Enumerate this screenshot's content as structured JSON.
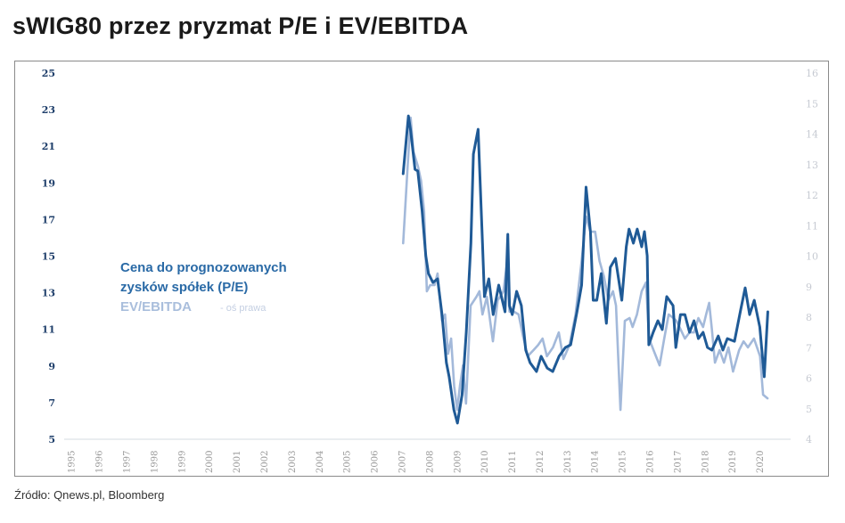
{
  "chart_data": {
    "type": "line",
    "title": "sWIG80 przez pryzmat P/E i EV/EBITDA",
    "source": "Źródło: Qnews.pl, Bloomberg",
    "xlabel": "",
    "ylabel_left": "",
    "ylabel_right": "",
    "xlim": [
      1994.75,
      2021.0
    ],
    "ylim_left": [
      5,
      25
    ],
    "ylim_right": [
      4,
      16
    ],
    "yticks_left": [
      "5",
      "7",
      "9",
      "11",
      "13",
      "15",
      "17",
      "19",
      "21",
      "23",
      "25"
    ],
    "yticks_right": [
      "4",
      "5",
      "6",
      "7",
      "8",
      "9",
      "10",
      "11",
      "12",
      "13",
      "14",
      "15",
      "16"
    ],
    "xticks": [
      "1995",
      "1996",
      "1997",
      "1998",
      "1999",
      "2000",
      "2001",
      "2002",
      "2003",
      "2004",
      "2005",
      "2006",
      "2007",
      "2008",
      "2009",
      "2010",
      "2011",
      "2012",
      "2013",
      "2014",
      "2015",
      "2016",
      "2017",
      "2018",
      "2019",
      "2020"
    ],
    "grid": false,
    "legend": {
      "placement": "center-left",
      "pe_line1": "Cena do prognozowanych",
      "pe_line2": "zysków spółek (P/E)",
      "ev_label": "EV/EBITDA",
      "ev_note": "- oś prawa"
    },
    "colors": {
      "pe": "#1f5a96",
      "ev": "#a3b9da"
    },
    "series": [
      {
        "name": "Cena do prognozowanych zysków spółek (P/E)",
        "axis": "left",
        "points": [
          [
            2007.06,
            19.5
          ],
          [
            2007.25,
            22.66
          ],
          [
            2007.33,
            21.85
          ],
          [
            2007.49,
            19.74
          ],
          [
            2007.59,
            19.65
          ],
          [
            2007.75,
            17.46
          ],
          [
            2007.88,
            15.02
          ],
          [
            2007.98,
            14.05
          ],
          [
            2008.14,
            13.56
          ],
          [
            2008.31,
            13.76
          ],
          [
            2008.47,
            11.81
          ],
          [
            2008.63,
            9.18
          ],
          [
            2008.73,
            8.41
          ],
          [
            2008.9,
            6.61
          ],
          [
            2009.03,
            5.88
          ],
          [
            2009.2,
            7.43
          ],
          [
            2009.35,
            10.84
          ],
          [
            2009.52,
            15.71
          ],
          [
            2009.61,
            20.57
          ],
          [
            2009.78,
            21.93
          ],
          [
            2009.94,
            15.71
          ],
          [
            2010.01,
            12.79
          ],
          [
            2010.17,
            13.76
          ],
          [
            2010.33,
            11.81
          ],
          [
            2010.53,
            13.42
          ],
          [
            2010.76,
            11.96
          ],
          [
            2010.86,
            16.19
          ],
          [
            2010.92,
            12.3
          ],
          [
            2011.02,
            11.81
          ],
          [
            2011.18,
            13.08
          ],
          [
            2011.35,
            12.3
          ],
          [
            2011.51,
            9.87
          ],
          [
            2011.67,
            9.18
          ],
          [
            2011.9,
            8.7
          ],
          [
            2012.07,
            9.53
          ],
          [
            2012.29,
            8.89
          ],
          [
            2012.49,
            8.7
          ],
          [
            2012.72,
            9.53
          ],
          [
            2012.95,
            10.01
          ],
          [
            2013.14,
            10.16
          ],
          [
            2013.37,
            11.96
          ],
          [
            2013.54,
            13.42
          ],
          [
            2013.7,
            18.77
          ],
          [
            2013.86,
            16.34
          ],
          [
            2013.96,
            12.59
          ],
          [
            2014.09,
            12.59
          ],
          [
            2014.25,
            14.05
          ],
          [
            2014.44,
            11.33
          ],
          [
            2014.58,
            14.39
          ],
          [
            2014.77,
            14.88
          ],
          [
            2015.0,
            12.59
          ],
          [
            2015.16,
            15.51
          ],
          [
            2015.26,
            16.48
          ],
          [
            2015.42,
            15.71
          ],
          [
            2015.56,
            16.48
          ],
          [
            2015.72,
            15.51
          ],
          [
            2015.82,
            16.34
          ],
          [
            2015.92,
            15.02
          ],
          [
            2015.98,
            10.16
          ],
          [
            2016.14,
            10.84
          ],
          [
            2016.31,
            11.47
          ],
          [
            2016.47,
            10.99
          ],
          [
            2016.63,
            12.79
          ],
          [
            2016.86,
            12.3
          ],
          [
            2016.96,
            10.01
          ],
          [
            2017.13,
            11.81
          ],
          [
            2017.29,
            11.81
          ],
          [
            2017.46,
            10.84
          ],
          [
            2017.62,
            11.47
          ],
          [
            2017.78,
            10.5
          ],
          [
            2017.95,
            10.84
          ],
          [
            2018.11,
            10.01
          ],
          [
            2018.27,
            9.87
          ],
          [
            2018.5,
            10.64
          ],
          [
            2018.67,
            9.87
          ],
          [
            2018.83,
            10.5
          ],
          [
            2019.09,
            10.35
          ],
          [
            2019.32,
            12.1
          ],
          [
            2019.48,
            13.27
          ],
          [
            2019.64,
            11.81
          ],
          [
            2019.81,
            12.59
          ],
          [
            2020.01,
            11.13
          ],
          [
            2020.17,
            8.41
          ],
          [
            2020.3,
            11.96
          ]
        ]
      },
      {
        "name": "EV/EBITDA",
        "axis": "right",
        "points": [
          [
            2007.06,
            10.42
          ],
          [
            2007.22,
            12.93
          ],
          [
            2007.33,
            14.54
          ],
          [
            2007.43,
            13.43
          ],
          [
            2007.6,
            12.93
          ],
          [
            2007.71,
            12.47
          ],
          [
            2007.82,
            11.47
          ],
          [
            2007.92,
            8.85
          ],
          [
            2008.04,
            9.05
          ],
          [
            2008.2,
            9.05
          ],
          [
            2008.31,
            9.43
          ],
          [
            2008.47,
            7.88
          ],
          [
            2008.58,
            8.09
          ],
          [
            2008.69,
            6.8
          ],
          [
            2008.8,
            7.3
          ],
          [
            2008.91,
            5.75
          ],
          [
            2009.02,
            4.96
          ],
          [
            2009.12,
            5.75
          ],
          [
            2009.23,
            6.42
          ],
          [
            2009.34,
            5.17
          ],
          [
            2009.51,
            8.38
          ],
          [
            2009.72,
            8.67
          ],
          [
            2009.83,
            8.85
          ],
          [
            2009.94,
            8.09
          ],
          [
            2010.1,
            8.67
          ],
          [
            2010.32,
            7.21
          ],
          [
            2010.49,
            8.55
          ],
          [
            2010.7,
            8.85
          ],
          [
            2010.81,
            9.64
          ],
          [
            2010.92,
            8.18
          ],
          [
            2011.08,
            8.18
          ],
          [
            2011.25,
            8.09
          ],
          [
            2011.41,
            7.39
          ],
          [
            2011.58,
            6.72
          ],
          [
            2011.79,
            6.92
          ],
          [
            2011.96,
            7.09
          ],
          [
            2012.12,
            7.3
          ],
          [
            2012.28,
            6.72
          ],
          [
            2012.5,
            7.01
          ],
          [
            2012.71,
            7.5
          ],
          [
            2012.88,
            6.63
          ],
          [
            2013.1,
            7.09
          ],
          [
            2013.32,
            8.09
          ],
          [
            2013.54,
            9.84
          ],
          [
            2013.7,
            11.3
          ],
          [
            2013.86,
            10.8
          ],
          [
            2014.03,
            10.8
          ],
          [
            2014.19,
            9.84
          ],
          [
            2014.35,
            9.34
          ],
          [
            2014.51,
            8.55
          ],
          [
            2014.68,
            8.85
          ],
          [
            2014.79,
            8.38
          ],
          [
            2014.95,
            4.96
          ],
          [
            2015.11,
            7.88
          ],
          [
            2015.28,
            7.97
          ],
          [
            2015.39,
            7.68
          ],
          [
            2015.55,
            8.09
          ],
          [
            2015.72,
            8.85
          ],
          [
            2015.88,
            9.14
          ],
          [
            2015.99,
            7.3
          ],
          [
            2016.15,
            6.92
          ],
          [
            2016.37,
            6.42
          ],
          [
            2016.54,
            7.3
          ],
          [
            2016.7,
            8.09
          ],
          [
            2016.87,
            7.97
          ],
          [
            2016.98,
            7.88
          ],
          [
            2017.14,
            7.59
          ],
          [
            2017.29,
            7.3
          ],
          [
            2017.46,
            7.5
          ],
          [
            2017.62,
            7.5
          ],
          [
            2017.78,
            7.97
          ],
          [
            2017.95,
            7.68
          ],
          [
            2018.06,
            8.09
          ],
          [
            2018.17,
            8.47
          ],
          [
            2018.27,
            7.59
          ],
          [
            2018.38,
            6.51
          ],
          [
            2018.55,
            6.92
          ],
          [
            2018.71,
            6.51
          ],
          [
            2018.87,
            7.01
          ],
          [
            2019.04,
            6.22
          ],
          [
            2019.26,
            6.92
          ],
          [
            2019.42,
            7.21
          ],
          [
            2019.58,
            7.01
          ],
          [
            2019.8,
            7.3
          ],
          [
            2020.02,
            6.72
          ],
          [
            2020.13,
            5.46
          ],
          [
            2020.29,
            5.34
          ]
        ]
      }
    ]
  }
}
